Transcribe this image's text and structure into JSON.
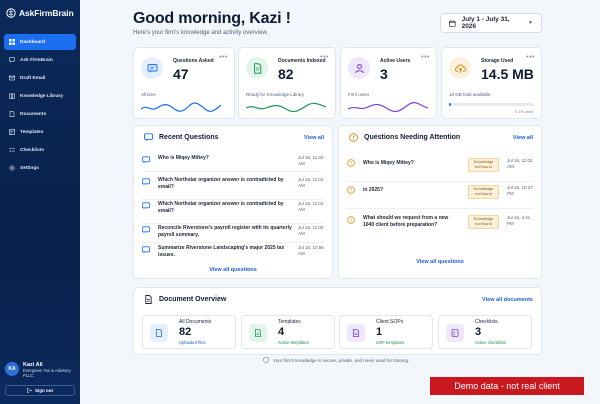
{
  "app": {
    "name": "AskFirmBrain"
  },
  "sidebar": {
    "items": [
      {
        "label": "Dashboard"
      },
      {
        "label": "Ask FirmBrain"
      },
      {
        "label": "Draft Email"
      },
      {
        "label": "Knowledge Library"
      },
      {
        "label": "Documents"
      },
      {
        "label": "Templates"
      },
      {
        "label": "Checklists"
      },
      {
        "label": "Settings"
      }
    ],
    "user": {
      "initials": "KA",
      "name": "Kazi Ali",
      "firm": "Evergreen Tax & Advisory PLLC"
    },
    "signout": "Sign out"
  },
  "header": {
    "greeting": "Good morning, Kazi !",
    "subtitle": "Here's your firm's knowledge and activity overview.",
    "date_range": "July 1 - July 31, 2026"
  },
  "stats": [
    {
      "label": "Questions Asked",
      "value": "47",
      "caption": "All time",
      "color": "#1b6ef0"
    },
    {
      "label": "Documents Indexed",
      "value": "82",
      "caption": "Ready for Knowledge Library",
      "color": "#1b9a5a"
    },
    {
      "label": "Active Users",
      "value": "3",
      "caption": "Firm users",
      "color": "#7b3fd6"
    },
    {
      "label": "Storage Used",
      "value": "14.5 MB",
      "caption": "10 GB total available",
      "percent_text": "0.1% used",
      "percent": 0.1,
      "color": "#e08a12"
    }
  ],
  "recent": {
    "title": "Recent Questions",
    "view_all": "View all",
    "footer": "View all questions",
    "items": [
      {
        "text": "Who is Miqey Mittey?",
        "date": "Jul 16, 11:02 AM"
      },
      {
        "text": "Which Northstar organizer answer is contradicted by email?",
        "date": "Jul 16, 11:01 AM"
      },
      {
        "text": "Which Northstar organizer answer is contradicted by email?",
        "date": "Jul 16, 11:01 AM"
      },
      {
        "text": "Reconcile Riverstone's payroll register with its quarterly payroll summary.",
        "date": "Jul 16, 11:00 AM"
      },
      {
        "text": "Summarize Riverstone Landscaping's major 2025 tax issues.",
        "date": "Jul 16, 10:56 AM"
      }
    ]
  },
  "attention": {
    "title": "Questions Needing Attention",
    "view_all": "View all",
    "footer": "View all questions",
    "badge": "Knowledge not found",
    "items": [
      {
        "text": "Who is Miqey Mittey?",
        "date": "Jul 16, 11:02 AM"
      },
      {
        "text": "in 2025?",
        "date": "Jul 15, 10:27 PM"
      },
      {
        "text": "What should we request from a new 1040 client before preparation?",
        "date": "Jul 15, 4:41 PM"
      }
    ]
  },
  "overview": {
    "title": "Document Overview",
    "view_all": "View all documents",
    "cards": [
      {
        "label": "All Documents",
        "value": "82",
        "sub": "Uploaded files",
        "color": "#1b6ef0",
        "bg": "#e6efff"
      },
      {
        "label": "Templates",
        "value": "4",
        "sub": "Active templates",
        "color": "#1b9a5a",
        "bg": "#e3f5ea"
      },
      {
        "label": "Client SOPs",
        "value": "1",
        "sub": "SOP templates",
        "color": "#7b3fd6",
        "bg": "#efe7fb"
      },
      {
        "label": "Checklists",
        "value": "3",
        "sub": "Active checklists",
        "color": "#7b3fd6",
        "bg": "#efe7fb"
      }
    ]
  },
  "footer": {
    "secure": "Your firm's knowledge is secure, private, and never used for training."
  },
  "banner": "Demo data - not real client"
}
